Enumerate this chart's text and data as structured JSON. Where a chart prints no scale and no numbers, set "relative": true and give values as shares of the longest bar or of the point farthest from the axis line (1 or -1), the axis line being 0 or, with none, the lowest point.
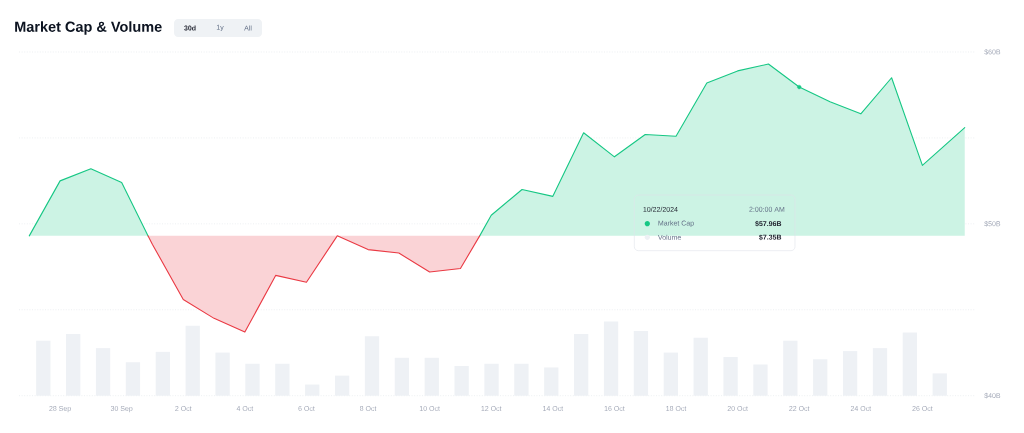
{
  "chart_data": [
    {
      "type": "line",
      "title": "Market Cap & Volume",
      "series": [
        {
          "name": "Market Cap",
          "color": "#16c784",
          "x": [
            "2024-09-27",
            "2024-09-28",
            "2024-09-29",
            "2024-09-30",
            "2024-09-30T20:30",
            "2024-10-06",
            "2024-10-11T15:00",
            "2024-10-12",
            "2024-10-13",
            "2024-10-14",
            "2024-10-15",
            "2024-10-16",
            "2024-10-17",
            "2024-10-18",
            "2024-10-19",
            "2024-10-20",
            "2024-10-21",
            "2024-10-22",
            "2024-10-23",
            "2024-10-24",
            "2024-10-25",
            "2024-10-26",
            "2024-10-27T09:00"
          ],
          "values": [
            49.3,
            52.5,
            53.2,
            52.4,
            49.3,
            null,
            49.3,
            50.5,
            52.0,
            51.6,
            55.3,
            53.9,
            55.2,
            55.1,
            58.2,
            58.9,
            59.3,
            57.96,
            57.1,
            56.4,
            58.5,
            53.4,
            55.6
          ],
          "lower": [
            49.3,
            49.3,
            49.3,
            49.3,
            49.3,
            null,
            49.3,
            49.3,
            49.3,
            49.3,
            49.3,
            49.3,
            49.3,
            49.3,
            49.3,
            49.3,
            49.3,
            49.3,
            49.3,
            49.3,
            49.3,
            49.3,
            49.3
          ],
          "upper": [
            49.3,
            52.5,
            53.2,
            52.4,
            49.3,
            null,
            49.3,
            50.5,
            52.0,
            51.6,
            55.3,
            53.9,
            55.2,
            55.1,
            58.2,
            58.9,
            59.3,
            57.96,
            57.1,
            56.4,
            58.5,
            53.4,
            55.6
          ]
        },
        {
          "color": "#ea3943",
          "x": [
            "2024-09-30T20:30",
            "2024-10-01",
            "2024-10-02",
            "2024-10-03",
            "2024-10-04",
            "2024-10-05",
            "2024-10-06",
            "2024-10-07",
            "2024-10-08",
            "2024-10-09",
            "2024-10-10",
            "2024-10-11",
            "2024-10-11T15:00"
          ],
          "values": [
            49.3,
            48.8,
            45.6,
            44.5,
            43.7,
            47.0,
            46.6,
            49.3,
            48.5,
            48.3,
            47.2,
            47.4,
            49.3
          ],
          "lower": [
            49.3,
            48.8,
            45.6,
            44.5,
            43.7,
            47.0,
            46.6,
            49.3,
            48.5,
            48.3,
            47.2,
            47.4,
            49.3
          ],
          "upper": [
            49.3,
            49.3,
            49.3,
            49.3,
            49.3,
            49.3,
            49.3,
            49.3,
            49.3,
            49.3,
            49.3,
            49.3,
            49.3
          ]
        },
        {
          "type": "scatter",
          "color": "#16c784",
          "x": [
            "2024-10-22"
          ],
          "values": [
            57.96
          ]
        }
      ],
      "xlim": [
        "2024-09-26T16:00",
        "2024-10-27T17:00"
      ],
      "xticks": [
        {
          "value": "2024-09-28",
          "label": "28 Sep"
        },
        {
          "value": "2024-09-30",
          "label": "30 Sep"
        },
        {
          "value": "2024-10-02",
          "label": "2 Oct"
        },
        {
          "value": "2024-10-04",
          "label": "4 Oct"
        },
        {
          "value": "2024-10-06",
          "label": "6 Oct"
        },
        {
          "value": "2024-10-08",
          "label": "8 Oct"
        },
        {
          "value": "2024-10-10",
          "label": "10 Oct"
        },
        {
          "value": "2024-10-12",
          "label": "12 Oct"
        },
        {
          "value": "2024-10-14",
          "label": "14 Oct"
        },
        {
          "value": "2024-10-16",
          "label": "16 Oct"
        },
        {
          "value": "2024-10-18",
          "label": "18 Oct"
        },
        {
          "value": "2024-10-20",
          "label": "20 Oct"
        },
        {
          "value": "2024-10-22",
          "label": "22 Oct"
        },
        {
          "value": "2024-10-24",
          "label": "24 Oct"
        },
        {
          "value": "2024-10-26",
          "label": "26 Oct"
        }
      ],
      "ylim": [
        40,
        60
      ],
      "yticks": [
        {
          "value": 40,
          "label": "$40B"
        },
        {
          "value": 45,
          "label": null
        },
        {
          "value": 50,
          "label": "$50B"
        },
        {
          "value": 55,
          "label": null
        },
        {
          "value": 60,
          "label": "$60B"
        }
      ],
      "grid": "y",
      "legend": "right",
      "annotations": [
        "30d",
        "1y",
        "All",
        "10/22/2024",
        "2:00:00 AM",
        "$57.96B"
      ]
    },
    {
      "type": "bar",
      "relative": true,
      "categories": [
        null,
        null,
        null,
        null,
        null,
        null,
        null,
        null,
        null,
        null,
        null,
        null,
        null,
        null,
        null,
        null,
        null,
        null,
        null,
        null,
        null,
        null,
        null,
        null,
        null,
        null,
        null,
        null,
        null,
        null,
        null
      ],
      "series": [
        {
          "name": "Volume",
          "color": "#eef1f5",
          "values": [
            0.74,
            0.83,
            0.64,
            0.45,
            0.59,
            0.94,
            0.58,
            0.43,
            0.43,
            0.15,
            0.27,
            0.8,
            0.51,
            0.51,
            0.4,
            0.43,
            0.43,
            0.38,
            0.83,
            1,
            0.87,
            0.58,
            0.78,
            0.52,
            0.42,
            0.74,
            0.49,
            0.6,
            0.64,
            0.85,
            0.3
          ]
        }
      ],
      "legend": "right",
      "annotations": [
        "$7.35B"
      ]
    }
  ]
}
